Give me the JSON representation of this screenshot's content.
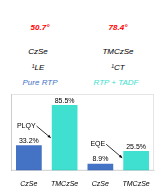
{
  "chart_data": {
    "type": "bar",
    "categories": [
      "CzSe",
      "TMCzSe",
      "CzSe",
      "TMCzSe"
    ],
    "values": [
      33.2,
      85.5,
      8.9,
      25.5
    ],
    "value_labels": [
      "33.2%",
      "85.5%",
      "8.9%",
      "25.5%"
    ],
    "colors": [
      "#4472c4",
      "#40e0d0",
      "#4472c4",
      "#40e0d0"
    ],
    "data_labels": true,
    "ylim": [
      0,
      100
    ],
    "tick_labels": "x",
    "annotations": [
      {
        "text": "50.7°",
        "color": "red"
      },
      {
        "text": "CzSe"
      },
      {
        "text": "78.4°",
        "color": "red"
      },
      {
        "text": "TMCzSe"
      },
      {
        "text": "¹LE"
      },
      {
        "text": "¹CT"
      },
      {
        "text": "Pure RTP",
        "color": "#4472c4"
      },
      {
        "text": "RTP + TADF",
        "color": "#40e0d0"
      },
      {
        "text": "PLQY"
      },
      {
        "text": "EQE"
      }
    ]
  }
}
